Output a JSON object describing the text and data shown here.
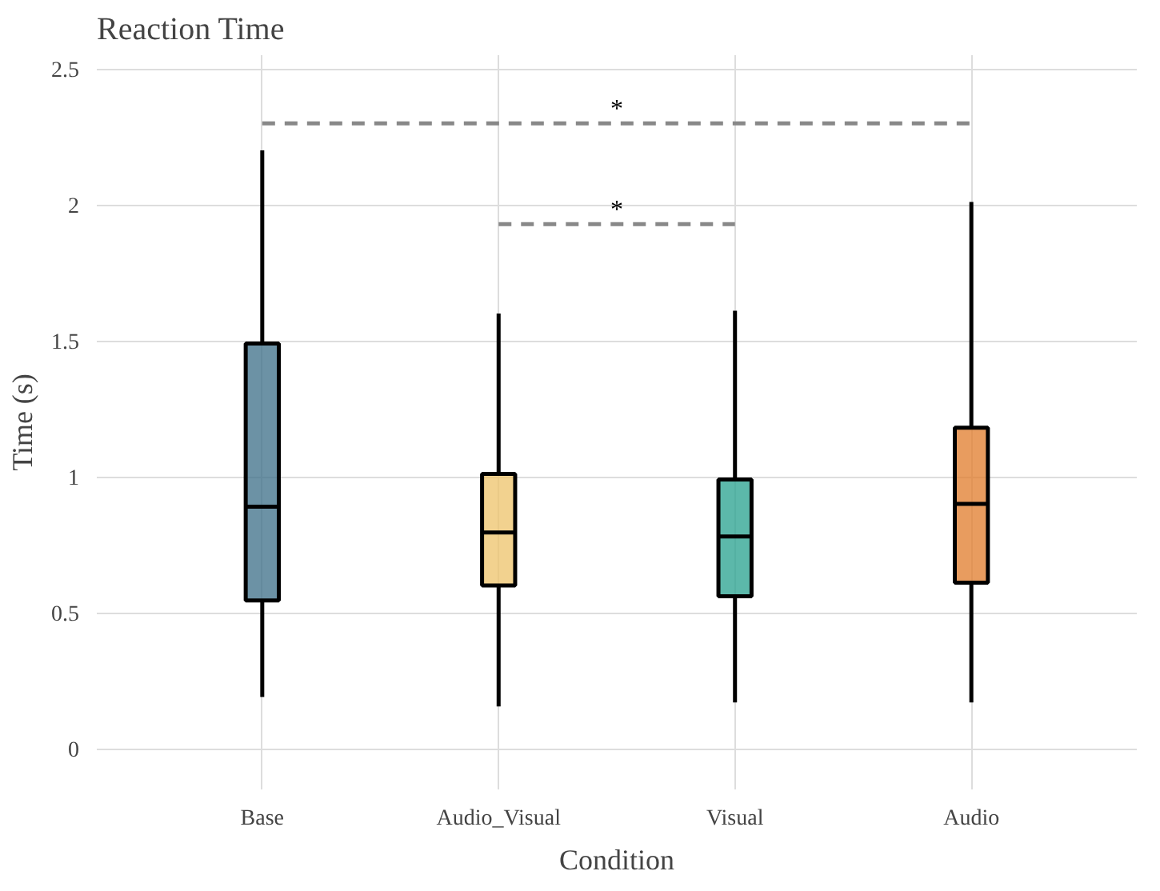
{
  "chart_data": {
    "type": "box",
    "title": "Reaction Time",
    "xlabel": "Condition",
    "ylabel": "Time (s)",
    "categories": [
      "Base",
      "Audio_Visual",
      "Visual",
      "Audio"
    ],
    "colors": [
      "#3b6e87",
      "#edc36a",
      "#26a08e",
      "#e07b2a"
    ],
    "boxes": [
      {
        "low": 0.19,
        "q1": 0.545,
        "median": 0.89,
        "q3": 1.49,
        "high": 2.2
      },
      {
        "low": 0.155,
        "q1": 0.6,
        "median": 0.795,
        "q3": 1.01,
        "high": 1.6
      },
      {
        "low": 0.17,
        "q1": 0.56,
        "median": 0.78,
        "q3": 0.99,
        "high": 1.61
      },
      {
        "low": 0.17,
        "q1": 0.61,
        "median": 0.9,
        "q3": 1.18,
        "high": 2.01
      }
    ],
    "ylim": [
      -0.15,
      2.55
    ],
    "yticks": [
      0,
      0.5,
      1,
      1.5,
      2,
      2.5
    ],
    "grid": true,
    "annotations": [
      "*",
      "*"
    ]
  }
}
